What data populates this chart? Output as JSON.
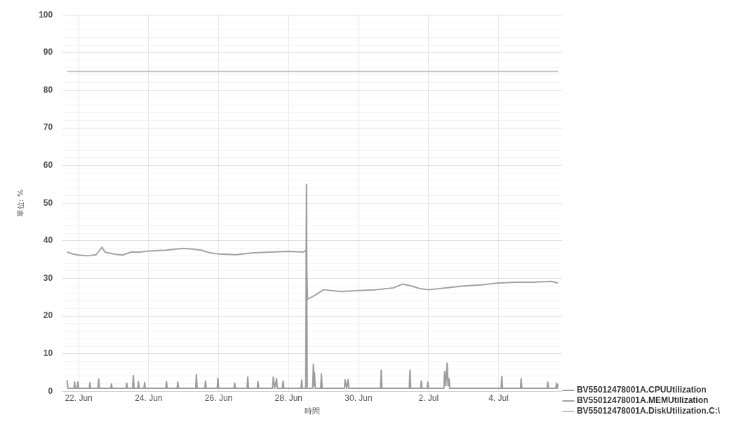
{
  "chart_data": {
    "type": "line",
    "xlabel": "時間",
    "ylabel": "單位: %",
    "xlim": [
      "--06-21T13:00",
      "--07-05T19:30"
    ],
    "xticks": [
      {
        "value": "--06-22",
        "label": "22. Jun"
      },
      {
        "value": "--06-24",
        "label": "24. Jun"
      },
      {
        "value": "--06-26",
        "label": "26. Jun"
      },
      {
        "value": "--06-28",
        "label": "28. Jun"
      },
      {
        "value": "--06-30",
        "label": "30. Jun"
      },
      {
        "value": "--07-02",
        "label": "2. Jul"
      },
      {
        "value": "--07-04",
        "label": "4. Jul"
      }
    ],
    "ylim": [
      0,
      100
    ],
    "yticks": [
      0,
      {
        "value": 2,
        "label": null
      },
      {
        "value": 4,
        "label": null
      },
      {
        "value": 6,
        "label": null
      },
      {
        "value": 8,
        "label": null
      },
      10,
      {
        "value": 12,
        "label": null
      },
      {
        "value": 14,
        "label": null
      },
      {
        "value": 16,
        "label": null
      },
      {
        "value": 18,
        "label": null
      },
      20,
      {
        "value": 22,
        "label": null
      },
      {
        "value": 24,
        "label": null
      },
      {
        "value": 26,
        "label": null
      },
      {
        "value": 28,
        "label": null
      },
      30,
      {
        "value": 32,
        "label": null
      },
      {
        "value": 34,
        "label": null
      },
      {
        "value": 36,
        "label": null
      },
      {
        "value": 38,
        "label": null
      },
      40,
      {
        "value": 42,
        "label": null
      },
      {
        "value": 44,
        "label": null
      },
      {
        "value": 46,
        "label": null
      },
      {
        "value": 48,
        "label": null
      },
      50,
      {
        "value": 52,
        "label": null
      },
      {
        "value": 54,
        "label": null
      },
      {
        "value": 56,
        "label": null
      },
      {
        "value": 58,
        "label": null
      },
      60,
      {
        "value": 62,
        "label": null
      },
      {
        "value": 64,
        "label": null
      },
      {
        "value": 66,
        "label": null
      },
      {
        "value": 68,
        "label": null
      },
      70,
      {
        "value": 72,
        "label": null
      },
      {
        "value": 74,
        "label": null
      },
      {
        "value": 76,
        "label": null
      },
      {
        "value": 78,
        "label": null
      },
      80,
      {
        "value": 82,
        "label": null
      },
      {
        "value": 84,
        "label": null
      },
      {
        "value": 86,
        "label": null
      },
      {
        "value": 88,
        "label": null
      },
      90,
      {
        "value": 92,
        "label": null
      },
      {
        "value": 94,
        "label": null
      },
      {
        "value": 96,
        "label": null
      },
      {
        "value": 98,
        "label": null
      },
      100
    ],
    "grid": true,
    "legend": "bottom right",
    "marker": "none",
    "line_style": "solid",
    "series": [
      {
        "name": "BV55012478001A.CPUUtilization",
        "color": "#9c9c9c",
        "x": [
          "--06-21T16:00",
          "--06-21T16:45",
          "--06-21T17:30",
          "--06-21T20:45",
          "--06-21T21:15",
          "--06-21T21:45",
          "--06-21T23:00",
          "--06-21T23:30",
          "--06-22T00:00",
          "--06-22T07:15",
          "--06-22T07:45",
          "--06-22T08:15",
          "--06-22T13:15",
          "--06-22T13:45",
          "--06-22T14:15",
          "--06-22T22:00",
          "--06-22T22:30",
          "--06-22T23:00",
          "--06-23T08:30",
          "--06-23T09:00",
          "--06-23T09:30",
          "--06-23T13:00",
          "--06-23T13:30",
          "--06-23T14:00",
          "--06-23T16:30",
          "--06-23T17:00",
          "--06-23T17:30",
          "--06-23T20:45",
          "--06-23T21:15",
          "--06-23T21:45",
          "--06-24T11:45",
          "--06-24T12:15",
          "--06-24T12:45",
          "--06-24T19:30",
          "--06-24T20:00",
          "--06-24T20:30",
          "--06-25T08:15",
          "--06-25T08:45",
          "--06-25T09:15",
          "--06-25T14:30",
          "--06-25T15:00",
          "--06-25T15:30",
          "--06-25T23:00",
          "--06-25T23:30",
          "--06-26T00:00",
          "--06-26T10:30",
          "--06-26T11:00",
          "--06-26T11:30",
          "--06-26T19:30",
          "--06-26T20:00",
          "--06-26T20:30",
          "--06-27T02:30",
          "--06-27T03:00",
          "--06-27T03:30",
          "--06-27T13:00",
          "--06-27T13:30",
          "--06-27T14:30",
          "--06-27T15:45",
          "--06-27T16:15",
          "--06-27T19:45",
          "--06-27T20:15",
          "--06-27T20:45",
          "--06-28T08:30",
          "--06-28T09:00",
          "--06-28T09:30",
          "--06-28T11:45",
          "--06-28T12:15",
          "--06-28T12:45",
          "--06-28T16:30",
          "--06-28T17:00",
          "--06-28T17:20",
          "--06-28T17:45",
          "--06-28T18:15",
          "--06-28T22:00",
          "--06-28T22:30",
          "--06-28T23:00",
          "--06-29T14:15",
          "--06-29T14:45",
          "--06-29T15:45",
          "--06-29T16:45",
          "--06-29T17:15",
          "--06-30T15:00",
          "--06-30T15:30",
          "--06-30T16:00",
          "--07-01T10:45",
          "--07-01T11:15",
          "--07-01T11:45",
          "--07-01T18:30",
          "--07-01T19:00",
          "--07-01T19:30",
          "--07-01T23:00",
          "--07-01T23:30",
          "--07-02T00:00",
          "--07-02T10:30",
          "--07-02T11:00",
          "--07-02T11:45",
          "--07-02T12:45",
          "--07-02T13:20",
          "--07-02T14:00",
          "--07-02T14:30",
          "--07-04T01:45",
          "--07-04T02:15",
          "--07-04T02:45",
          "--07-04T15:00",
          "--07-04T15:30",
          "--07-04T16:00",
          "--07-05T09:15",
          "--07-05T09:45",
          "--07-05T10:15",
          "--07-05T15:15",
          "--07-05T15:45",
          "--07-05T16:15",
          "--07-05T16:45"
        ],
        "values": [
          3,
          0.8,
          0.8,
          0.8,
          2.5,
          0.8,
          0.8,
          2.5,
          0.8,
          0.8,
          2.3,
          0.8,
          0.8,
          3.3,
          0.8,
          0.8,
          2,
          0.8,
          0.8,
          2.2,
          0.8,
          0.8,
          4.2,
          0.8,
          0.8,
          2.6,
          0.8,
          0.8,
          2.4,
          0.8,
          0.8,
          2.6,
          0.8,
          0.8,
          2.5,
          0.8,
          0.8,
          4.5,
          0.8,
          0.8,
          2.8,
          0.8,
          0.8,
          3.5,
          0.8,
          0.8,
          2.2,
          0.8,
          0.8,
          3.8,
          0.8,
          0.8,
          2.6,
          0.8,
          0.8,
          3.8,
          0.8,
          3.4,
          0.8,
          0.8,
          2.8,
          0.8,
          0.8,
          3,
          0.8,
          0.8,
          55,
          0.8,
          0.8,
          7.2,
          1.5,
          5,
          0.8,
          0.8,
          4.7,
          0.8,
          0.8,
          3.1,
          0.8,
          3.1,
          0.8,
          0.8,
          5.6,
          0.8,
          0.8,
          5.6,
          0.8,
          0.8,
          2.8,
          0.8,
          0.8,
          2.5,
          0.8,
          0.8,
          5.3,
          1.5,
          7.5,
          1.5,
          3.4,
          0.8,
          0.8,
          4,
          0.8,
          0.8,
          3.4,
          0.8,
          0.8,
          2.5,
          0.8,
          0.8,
          2.2,
          0.8,
          2
        ]
      },
      {
        "name": "BV55012478001A.MEMUtilization",
        "color": "#a3a3a3",
        "x": [
          "--06-21T16:00",
          "--06-21T20:00",
          "--06-22T00:00",
          "--06-22T06:00",
          "--06-22T12:00",
          "--06-22T16:00",
          "--06-22T18:00",
          "--06-23T00:00",
          "--06-23T06:00",
          "--06-23T12:00",
          "--06-23T18:00",
          "--06-24T00:00",
          "--06-24T12:00",
          "--06-25T00:00",
          "--06-25T06:00",
          "--06-25T12:00",
          "--06-25T18:00",
          "--06-26T00:00",
          "--06-26T12:00",
          "--06-27T00:00",
          "--06-27T12:00",
          "--06-28T00:00",
          "--06-28T10:00",
          "--06-28T12:00",
          "--06-28T13:00",
          "--06-28T18:00",
          "--06-29T00:00",
          "--06-29T12:00",
          "--06-30T00:00",
          "--06-30T12:00",
          "--07-01T00:00",
          "--07-01T06:00",
          "--07-01T12:00",
          "--07-01T18:00",
          "--07-02T00:00",
          "--07-02T12:00",
          "--07-03T00:00",
          "--07-03T12:00",
          "--07-04T00:00",
          "--07-04T12:00",
          "--07-05T00:00",
          "--07-05T12:00",
          "--07-05T16:45"
        ],
        "values": [
          37,
          36.5,
          36.2,
          36,
          36.3,
          38.3,
          37,
          36.5,
          36.2,
          37,
          37,
          37.3,
          37.5,
          38,
          37.8,
          37.5,
          36.8,
          36.5,
          36.3,
          36.8,
          37,
          37.2,
          37,
          37.5,
          24.5,
          25.5,
          27,
          26.5,
          26.8,
          27,
          27.5,
          28.5,
          28,
          27.3,
          27,
          27.5,
          28,
          28.3,
          28.8,
          29,
          29,
          29.2,
          28.8
        ]
      },
      {
        "name": "BV55012478001A.DiskUtilization.C:\\",
        "color": "#c2c2c2",
        "x": [
          "--06-21T16:00",
          "--07-05T16:45"
        ],
        "values": [
          85,
          85
        ]
      }
    ]
  }
}
